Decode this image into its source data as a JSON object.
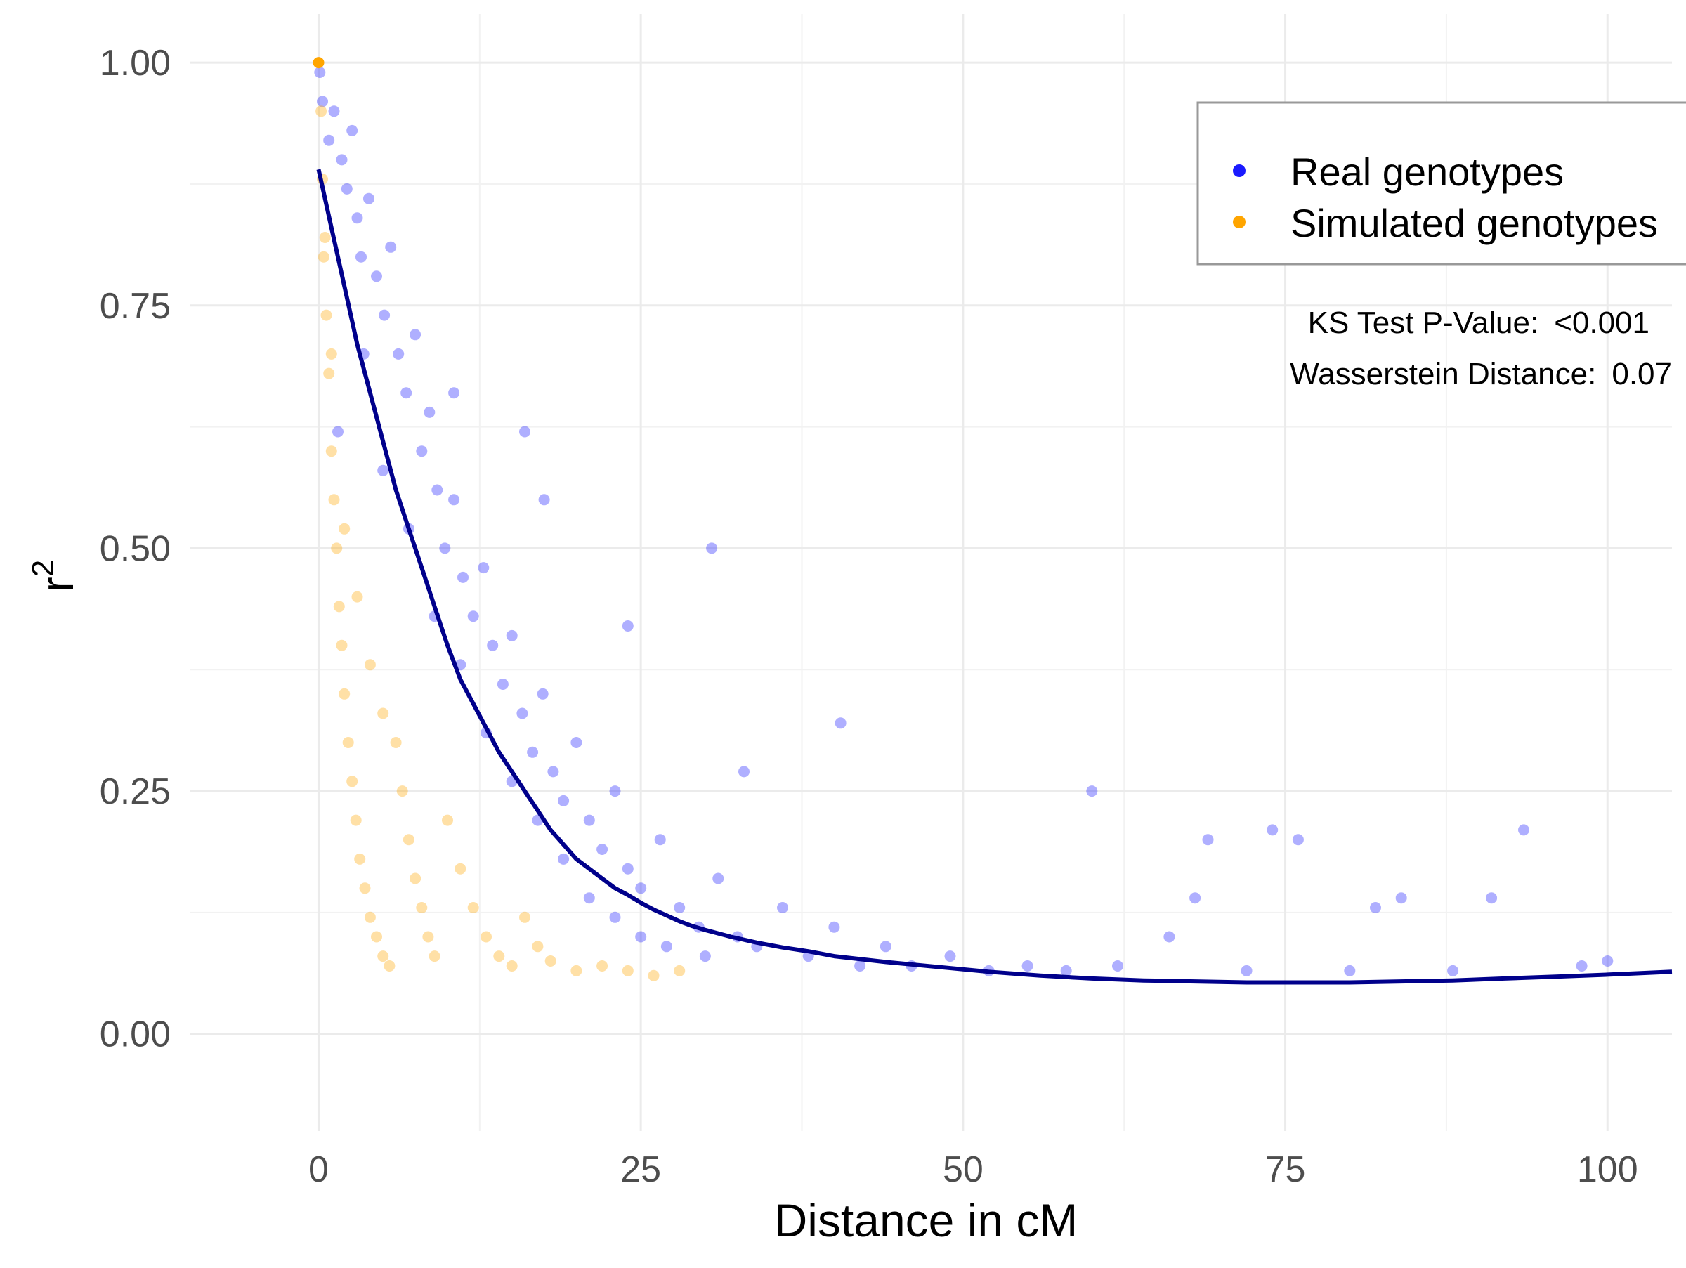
{
  "chart_data": {
    "type": "scatter",
    "xlabel": "Distance in cM",
    "ylabel": "r",
    "ylabel_superscript": "2",
    "xlim": [
      -10,
      105
    ],
    "ylim": [
      -0.1,
      1.05
    ],
    "x_ticks": [
      {
        "value": 0,
        "label": "0"
      },
      {
        "value": 25,
        "label": "25"
      },
      {
        "value": 50,
        "label": "50"
      },
      {
        "value": 75,
        "label": "75"
      },
      {
        "value": 100,
        "label": "100"
      }
    ],
    "y_ticks": [
      {
        "value": 0,
        "label": "0.00"
      },
      {
        "value": 0.25,
        "label": "0.25"
      },
      {
        "value": 0.5,
        "label": "0.50"
      },
      {
        "value": 0.75,
        "label": "0.75"
      },
      {
        "value": 1.0,
        "label": "1.00"
      }
    ],
    "x_minor_ticks": [
      12.5,
      37.5,
      62.5,
      87.5
    ],
    "y_minor_ticks": [
      0.125,
      0.375,
      0.625,
      0.875
    ],
    "grid": true,
    "legend": {
      "position": "top-right",
      "entries": [
        {
          "label": "Real genotypes",
          "color": "#1a1aff"
        },
        {
          "label": "Simulated genotypes",
          "color": "#ffa500"
        }
      ]
    },
    "annotations": [
      {
        "label": "KS Test P-Value:",
        "value": "<0.001"
      },
      {
        "label": "Wasserstein Distance:",
        "value": "0.07"
      }
    ],
    "series": [
      {
        "name": "Real genotypes",
        "color": "#1a1aff",
        "points": [
          [
            0.1,
            0.99
          ],
          [
            0.3,
            0.96
          ],
          [
            0.8,
            0.92
          ],
          [
            1.2,
            0.95
          ],
          [
            1.8,
            0.9
          ],
          [
            2.2,
            0.87
          ],
          [
            2.6,
            0.93
          ],
          [
            3.0,
            0.84
          ],
          [
            3.3,
            0.8
          ],
          [
            3.9,
            0.86
          ],
          [
            4.5,
            0.78
          ],
          [
            5.1,
            0.74
          ],
          [
            5.6,
            0.81
          ],
          [
            6.2,
            0.7
          ],
          [
            6.8,
            0.66
          ],
          [
            7.5,
            0.72
          ],
          [
            8.0,
            0.6
          ],
          [
            8.6,
            0.64
          ],
          [
            9.2,
            0.56
          ],
          [
            9.8,
            0.5
          ],
          [
            10.5,
            0.55
          ],
          [
            11.2,
            0.47
          ],
          [
            12.0,
            0.43
          ],
          [
            12.8,
            0.48
          ],
          [
            13.5,
            0.4
          ],
          [
            14.3,
            0.36
          ],
          [
            15.0,
            0.41
          ],
          [
            15.8,
            0.33
          ],
          [
            16.6,
            0.29
          ],
          [
            17.4,
            0.35
          ],
          [
            18.2,
            0.27
          ],
          [
            19.0,
            0.24
          ],
          [
            20.0,
            0.3
          ],
          [
            21.0,
            0.22
          ],
          [
            22.0,
            0.19
          ],
          [
            23.0,
            0.25
          ],
          [
            24.0,
            0.17
          ],
          [
            25.0,
            0.15
          ],
          [
            26.5,
            0.2
          ],
          [
            28.0,
            0.13
          ],
          [
            29.5,
            0.11
          ],
          [
            31.0,
            0.16
          ],
          [
            32.5,
            0.1
          ],
          [
            34.0,
            0.09
          ],
          [
            36.0,
            0.13
          ],
          [
            38.0,
            0.08
          ],
          [
            40.0,
            0.11
          ],
          [
            42.0,
            0.07
          ],
          [
            44.0,
            0.09
          ],
          [
            46.0,
            0.07
          ],
          [
            49.0,
            0.08
          ],
          [
            52.0,
            0.065
          ],
          [
            55.0,
            0.07
          ],
          [
            58.0,
            0.065
          ],
          [
            60.0,
            0.25
          ],
          [
            62.0,
            0.07
          ],
          [
            66.0,
            0.1
          ],
          [
            68.0,
            0.14
          ],
          [
            69.0,
            0.2
          ],
          [
            72.0,
            0.065
          ],
          [
            74.0,
            0.21
          ],
          [
            76.0,
            0.2
          ],
          [
            80.0,
            0.065
          ],
          [
            82.0,
            0.13
          ],
          [
            84.0,
            0.14
          ],
          [
            88.0,
            0.065
          ],
          [
            91.0,
            0.14
          ],
          [
            93.5,
            0.21
          ],
          [
            98.0,
            0.07
          ],
          [
            100.0,
            0.075
          ],
          [
            1.5,
            0.62
          ],
          [
            3.5,
            0.7
          ],
          [
            5.0,
            0.58
          ],
          [
            7.0,
            0.52
          ],
          [
            9.0,
            0.43
          ],
          [
            11.0,
            0.38
          ],
          [
            13.0,
            0.31
          ],
          [
            15.0,
            0.26
          ],
          [
            17.0,
            0.22
          ],
          [
            19.0,
            0.18
          ],
          [
            21.0,
            0.14
          ],
          [
            23.0,
            0.12
          ],
          [
            25.0,
            0.1
          ],
          [
            27.0,
            0.09
          ],
          [
            30.0,
            0.08
          ],
          [
            10.5,
            0.66
          ],
          [
            16.0,
            0.62
          ],
          [
            17.5,
            0.55
          ],
          [
            24.0,
            0.42
          ],
          [
            30.5,
            0.5
          ],
          [
            40.5,
            0.32
          ],
          [
            33.0,
            0.27
          ]
        ]
      },
      {
        "name": "Simulated genotypes",
        "color": "#ffa500",
        "points": [
          [
            0.0,
            1.0
          ],
          [
            0.2,
            0.95
          ],
          [
            0.3,
            0.88
          ],
          [
            0.5,
            0.82
          ],
          [
            0.6,
            0.74
          ],
          [
            0.8,
            0.68
          ],
          [
            1.0,
            0.6
          ],
          [
            1.2,
            0.55
          ],
          [
            1.4,
            0.5
          ],
          [
            1.6,
            0.44
          ],
          [
            1.8,
            0.4
          ],
          [
            2.0,
            0.35
          ],
          [
            2.3,
            0.3
          ],
          [
            2.6,
            0.26
          ],
          [
            2.9,
            0.22
          ],
          [
            3.2,
            0.18
          ],
          [
            3.6,
            0.15
          ],
          [
            4.0,
            0.12
          ],
          [
            4.5,
            0.1
          ],
          [
            5.0,
            0.08
          ],
          [
            5.5,
            0.07
          ],
          [
            6.0,
            0.3
          ],
          [
            6.5,
            0.25
          ],
          [
            7.0,
            0.2
          ],
          [
            7.5,
            0.16
          ],
          [
            8.0,
            0.13
          ],
          [
            8.5,
            0.1
          ],
          [
            9.0,
            0.08
          ],
          [
            10.0,
            0.22
          ],
          [
            11.0,
            0.17
          ],
          [
            12.0,
            0.13
          ],
          [
            13.0,
            0.1
          ],
          [
            14.0,
            0.08
          ],
          [
            15.0,
            0.07
          ],
          [
            16.0,
            0.12
          ],
          [
            17.0,
            0.09
          ],
          [
            18.0,
            0.075
          ],
          [
            20.0,
            0.065
          ],
          [
            22.0,
            0.07
          ],
          [
            24.0,
            0.065
          ],
          [
            26.0,
            0.06
          ],
          [
            28.0,
            0.065
          ],
          [
            3.0,
            0.45
          ],
          [
            4.0,
            0.38
          ],
          [
            5.0,
            0.33
          ],
          [
            2.0,
            0.52
          ],
          [
            1.0,
            0.7
          ],
          [
            0.4,
            0.8
          ]
        ]
      },
      {
        "name": "",
        "type": "line",
        "color": "#00008b",
        "points": [
          [
            0,
            0.89
          ],
          [
            1,
            0.83
          ],
          [
            2,
            0.77
          ],
          [
            3,
            0.71
          ],
          [
            4,
            0.66
          ],
          [
            5,
            0.61
          ],
          [
            6,
            0.56
          ],
          [
            7,
            0.52
          ],
          [
            8,
            0.48
          ],
          [
            9,
            0.44
          ],
          [
            10,
            0.4
          ],
          [
            11,
            0.365
          ],
          [
            12,
            0.34
          ],
          [
            13,
            0.315
          ],
          [
            14,
            0.29
          ],
          [
            15,
            0.27
          ],
          [
            16,
            0.25
          ],
          [
            17,
            0.23
          ],
          [
            18,
            0.21
          ],
          [
            19,
            0.195
          ],
          [
            20,
            0.18
          ],
          [
            21,
            0.17
          ],
          [
            22,
            0.16
          ],
          [
            23,
            0.15
          ],
          [
            24,
            0.143
          ],
          [
            25,
            0.135
          ],
          [
            26,
            0.128
          ],
          [
            27,
            0.122
          ],
          [
            28,
            0.116
          ],
          [
            29,
            0.111
          ],
          [
            30,
            0.107
          ],
          [
            32,
            0.1
          ],
          [
            34,
            0.094
          ],
          [
            36,
            0.089
          ],
          [
            38,
            0.085
          ],
          [
            40,
            0.08
          ],
          [
            44,
            0.074
          ],
          [
            48,
            0.069
          ],
          [
            52,
            0.064
          ],
          [
            56,
            0.06
          ],
          [
            60,
            0.057
          ],
          [
            64,
            0.055
          ],
          [
            68,
            0.054
          ],
          [
            72,
            0.053
          ],
          [
            76,
            0.053
          ],
          [
            80,
            0.053
          ],
          [
            84,
            0.054
          ],
          [
            88,
            0.055
          ],
          [
            92,
            0.057
          ],
          [
            96,
            0.059
          ],
          [
            100,
            0.061
          ],
          [
            105,
            0.064
          ]
        ]
      }
    ]
  }
}
